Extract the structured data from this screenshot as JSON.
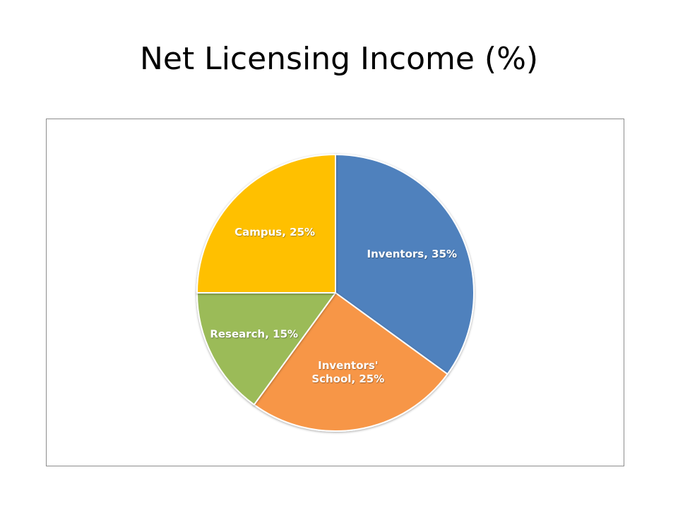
{
  "slide": {
    "title": "Net Licensing Income (%)"
  },
  "chart_data": {
    "type": "pie",
    "title": "Net Licensing Income (%)",
    "categories": [
      "Inventors",
      "Inventors' School",
      "Research",
      "Campus"
    ],
    "values": [
      35,
      25,
      15,
      25
    ],
    "unit": "%",
    "colors": [
      "#4F81BD",
      "#F79646",
      "#9BBB59",
      "#FFC000"
    ],
    "data_labels": [
      [
        "Inventors, 35%"
      ],
      [
        "Inventors'",
        "School, 25%"
      ],
      [
        "Research, 15%"
      ],
      [
        "Campus, 25%"
      ]
    ],
    "legend": "none",
    "start_angle": "12 o'clock",
    "direction": "clockwise"
  }
}
